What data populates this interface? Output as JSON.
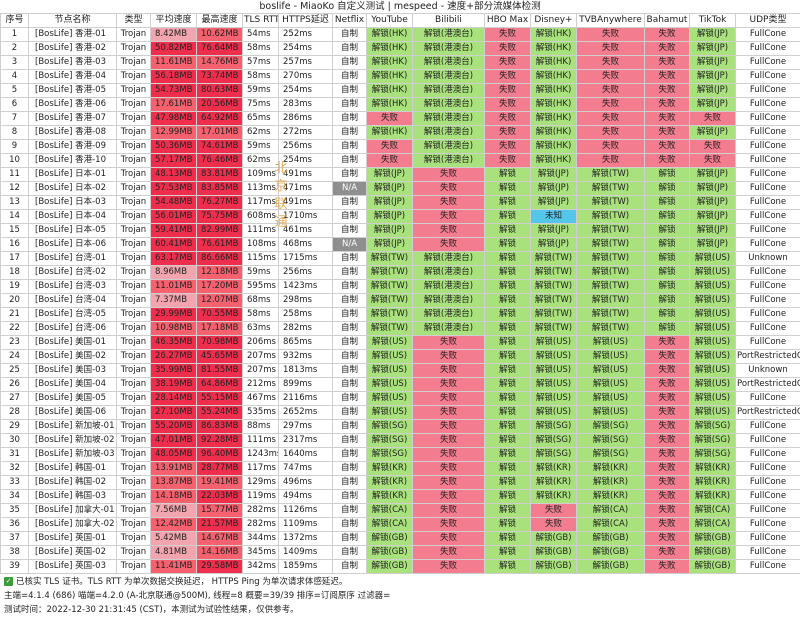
{
  "title": "boslife - MiaoKo 自定义测试 | mespeed - 速度+部分流媒体检测",
  "colors": {
    "ok": "#a9e27d",
    "fail": "#f37d8f",
    "speed_high": "#ef2e4e",
    "speed_mid": "#f5616f",
    "speed_low": "#f2a5ae",
    "na": "#8f8f8f",
    "unknown": "#53c6ea",
    "white": "#ffffff"
  },
  "headers": [
    "序号",
    "节点名称",
    "类型",
    "平均速度",
    "最高速度",
    "TLS RTT",
    "HTTPS延迟",
    "Netflix",
    "YouTube",
    "Bilibili",
    "HBO Max",
    "Disney+",
    "TVBAnywhere",
    "Bahamut",
    "TikTok",
    "UDP类型"
  ],
  "rows": [
    [
      "1",
      "[BosLife] 香港-01",
      "Trojan",
      "8.42MB",
      "10.62MB",
      "54ms",
      "252ms",
      "自制",
      "解锁(HK)",
      "解锁(港澳台)",
      "失败",
      "解锁(HK)",
      "失败",
      "失败",
      "解锁(JP)",
      "FullCone"
    ],
    [
      "2",
      "[BosLife] 香港-02",
      "Trojan",
      "50.82MB",
      "76.64MB",
      "58ms",
      "254ms",
      "自制",
      "解锁(HK)",
      "解锁(港澳台)",
      "失败",
      "解锁(HK)",
      "失败",
      "失败",
      "解锁(JP)",
      "FullCone"
    ],
    [
      "3",
      "[BosLife] 香港-03",
      "Trojan",
      "11.61MB",
      "14.76MB",
      "57ms",
      "257ms",
      "自制",
      "解锁(HK)",
      "解锁(港澳台)",
      "失败",
      "解锁(HK)",
      "失败",
      "失败",
      "解锁(JP)",
      "FullCone"
    ],
    [
      "4",
      "[BosLife] 香港-04",
      "Trojan",
      "56.18MB",
      "73.74MB",
      "58ms",
      "270ms",
      "自制",
      "解锁(HK)",
      "解锁(港澳台)",
      "失败",
      "解锁(HK)",
      "失败",
      "失败",
      "解锁(JP)",
      "FullCone"
    ],
    [
      "5",
      "[BosLife] 香港-05",
      "Trojan",
      "54.73MB",
      "80.63MB",
      "59ms",
      "254ms",
      "自制",
      "解锁(HK)",
      "解锁(港澳台)",
      "失败",
      "解锁(HK)",
      "失败",
      "失败",
      "解锁(JP)",
      "FullCone"
    ],
    [
      "6",
      "[BosLife] 香港-06",
      "Trojan",
      "17.61MB",
      "20.56MB",
      "75ms",
      "283ms",
      "自制",
      "解锁(HK)",
      "解锁(港澳台)",
      "失败",
      "解锁(HK)",
      "失败",
      "失败",
      "解锁(JP)",
      "FullCone"
    ],
    [
      "7",
      "[BosLife] 香港-07",
      "Trojan",
      "47.98MB",
      "64.92MB",
      "65ms",
      "286ms",
      "自制",
      "失败",
      "解锁(港澳台)",
      "失败",
      "解锁(HK)",
      "失败",
      "失败",
      "失败",
      "FullCone"
    ],
    [
      "8",
      "[BosLife] 香港-08",
      "Trojan",
      "12.99MB",
      "17.01MB",
      "62ms",
      "272ms",
      "自制",
      "解锁(HK)",
      "解锁(港澳台)",
      "失败",
      "解锁(HK)",
      "失败",
      "失败",
      "解锁(JP)",
      "FullCone"
    ],
    [
      "9",
      "[BosLife] 香港-09",
      "Trojan",
      "50.36MB",
      "74.61MB",
      "59ms",
      "256ms",
      "自制",
      "失败",
      "解锁(港澳台)",
      "失败",
      "解锁(HK)",
      "失败",
      "失败",
      "失败",
      "FullCone"
    ],
    [
      "10",
      "[BosLife] 香港-10",
      "Trojan",
      "57.17MB",
      "76.46MB",
      "62ms",
      "254ms",
      "自制",
      "失败",
      "解锁(港澳台)",
      "失败",
      "解锁(HK)",
      "失败",
      "失败",
      "失败",
      "FullCone"
    ],
    [
      "11",
      "[BosLife] 日本-01",
      "Trojan",
      "48.13MB",
      "83.81MB",
      "109ms",
      "491ms",
      "自制",
      "解锁(JP)",
      "失败",
      "解锁",
      "解锁(JP)",
      "解锁(TW)",
      "解锁",
      "解锁(JP)",
      "FullCone"
    ],
    [
      "12",
      "[BosLife] 日本-02",
      "Trojan",
      "57.53MB",
      "83.85MB",
      "113ms",
      "471ms",
      "N/A",
      "解锁(JP)",
      "失败",
      "解锁",
      "解锁(JP)",
      "解锁(TW)",
      "解锁",
      "解锁(JP)",
      "FullCone"
    ],
    [
      "13",
      "[BosLife] 日本-03",
      "Trojan",
      "54.48MB",
      "76.27MB",
      "117ms",
      "491ms",
      "自制",
      "解锁(JP)",
      "失败",
      "解锁",
      "解锁(JP)",
      "解锁(TW)",
      "解锁",
      "解锁(JP)",
      "FullCone"
    ],
    [
      "14",
      "[BosLife] 日本-04",
      "Trojan",
      "56.01MB",
      "75.75MB",
      "608ms",
      "1710ms",
      "自制",
      "解锁(JP)",
      "失败",
      "解锁",
      "未知",
      "解锁(TW)",
      "解锁",
      "解锁(JP)",
      "FullCone"
    ],
    [
      "15",
      "[BosLife] 日本-05",
      "Trojan",
      "59.41MB",
      "82.99MB",
      "111ms",
      "461ms",
      "自制",
      "解锁(JP)",
      "失败",
      "解锁",
      "解锁(JP)",
      "解锁(TW)",
      "解锁",
      "解锁(JP)",
      "FullCone"
    ],
    [
      "16",
      "[BosLife] 日本-06",
      "Trojan",
      "60.41MB",
      "76.61MB",
      "108ms",
      "468ms",
      "N/A",
      "解锁(JP)",
      "失败",
      "解锁",
      "解锁(JP)",
      "解锁(TW)",
      "解锁",
      "解锁(JP)",
      "FullCone"
    ],
    [
      "17",
      "[BosLife] 台湾-01",
      "Trojan",
      "63.17MB",
      "86.66MB",
      "115ms",
      "1715ms",
      "自制",
      "解锁(TW)",
      "解锁(港澳台)",
      "解锁",
      "解锁(TW)",
      "解锁(TW)",
      "解锁",
      "解锁(US)",
      "Unknown"
    ],
    [
      "18",
      "[BosLife] 台湾-02",
      "Trojan",
      "8.96MB",
      "12.18MB",
      "59ms",
      "256ms",
      "自制",
      "解锁(TW)",
      "解锁(港澳台)",
      "解锁",
      "解锁(TW)",
      "解锁(TW)",
      "解锁",
      "解锁(US)",
      "FullCone"
    ],
    [
      "19",
      "[BosLife] 台湾-03",
      "Trojan",
      "11.01MB",
      "17.20MB",
      "595ms",
      "1423ms",
      "自制",
      "解锁(TW)",
      "解锁(港澳台)",
      "解锁",
      "解锁(TW)",
      "解锁(TW)",
      "解锁",
      "解锁(US)",
      "FullCone"
    ],
    [
      "20",
      "[BosLife] 台湾-04",
      "Trojan",
      "7.37MB",
      "12.07MB",
      "68ms",
      "298ms",
      "自制",
      "解锁(TW)",
      "解锁(港澳台)",
      "解锁",
      "解锁(TW)",
      "解锁(TW)",
      "解锁",
      "解锁(US)",
      "FullCone"
    ],
    [
      "21",
      "[BosLife] 台湾-05",
      "Trojan",
      "29.99MB",
      "70.55MB",
      "58ms",
      "258ms",
      "自制",
      "解锁(TW)",
      "解锁(港澳台)",
      "解锁",
      "解锁(TW)",
      "解锁(TW)",
      "解锁",
      "解锁(US)",
      "FullCone"
    ],
    [
      "22",
      "[BosLife] 台湾-06",
      "Trojan",
      "10.98MB",
      "17.18MB",
      "63ms",
      "282ms",
      "自制",
      "解锁(TW)",
      "解锁(港澳台)",
      "解锁",
      "解锁(TW)",
      "解锁(TW)",
      "解锁",
      "解锁(US)",
      "FullCone"
    ],
    [
      "23",
      "[BosLife] 美国-01",
      "Trojan",
      "46.35MB",
      "70.98MB",
      "206ms",
      "865ms",
      "自制",
      "解锁(US)",
      "失败",
      "解锁",
      "解锁(US)",
      "解锁(US)",
      "失败",
      "解锁(US)",
      "FullCone"
    ],
    [
      "24",
      "[BosLife] 美国-02",
      "Trojan",
      "26.27MB",
      "45.65MB",
      "207ms",
      "932ms",
      "自制",
      "解锁(US)",
      "失败",
      "解锁",
      "解锁(US)",
      "解锁(US)",
      "失败",
      "解锁(US)",
      "PortRestrictedCone"
    ],
    [
      "25",
      "[BosLife] 美国-03",
      "Trojan",
      "35.99MB",
      "81.55MB",
      "207ms",
      "1813ms",
      "自制",
      "解锁(US)",
      "失败",
      "解锁",
      "解锁(US)",
      "解锁(US)",
      "失败",
      "解锁(US)",
      "Unknown"
    ],
    [
      "26",
      "[BosLife] 美国-04",
      "Trojan",
      "38.19MB",
      "64.86MB",
      "212ms",
      "899ms",
      "自制",
      "解锁(US)",
      "失败",
      "解锁",
      "解锁(US)",
      "解锁(US)",
      "失败",
      "解锁(US)",
      "PortRestrictedCone"
    ],
    [
      "27",
      "[BosLife] 美国-05",
      "Trojan",
      "28.14MB",
      "55.15MB",
      "467ms",
      "2116ms",
      "自制",
      "解锁(US)",
      "失败",
      "解锁",
      "解锁(US)",
      "解锁(US)",
      "失败",
      "解锁(US)",
      "FullCone"
    ],
    [
      "28",
      "[BosLife] 美国-06",
      "Trojan",
      "27.10MB",
      "55.24MB",
      "535ms",
      "2652ms",
      "自制",
      "解锁(US)",
      "失败",
      "解锁",
      "解锁(US)",
      "解锁(US)",
      "失败",
      "解锁(US)",
      "PortRestrictedCone"
    ],
    [
      "29",
      "[BosLife] 新加坡-01",
      "Trojan",
      "55.20MB",
      "86.83MB",
      "88ms",
      "297ms",
      "自制",
      "解锁(SG)",
      "失败",
      "解锁",
      "解锁(SG)",
      "解锁(SG)",
      "失败",
      "解锁(SG)",
      "FullCone"
    ],
    [
      "30",
      "[BosLife] 新加坡-02",
      "Trojan",
      "47.01MB",
      "92.28MB",
      "111ms",
      "2317ms",
      "自制",
      "解锁(SG)",
      "失败",
      "解锁",
      "解锁(SG)",
      "解锁(SG)",
      "失败",
      "解锁(SG)",
      "FullCone"
    ],
    [
      "31",
      "[BosLife] 新加坡-03",
      "Trojan",
      "48.05MB",
      "96.40MB",
      "1243ms",
      "1640ms",
      "自制",
      "解锁(SG)",
      "失败",
      "解锁",
      "解锁(SG)",
      "解锁(SG)",
      "失败",
      "解锁(SG)",
      "FullCone"
    ],
    [
      "32",
      "[BosLife] 韩国-01",
      "Trojan",
      "13.91MB",
      "28.77MB",
      "117ms",
      "747ms",
      "自制",
      "解锁(KR)",
      "失败",
      "解锁",
      "解锁(KR)",
      "解锁(KR)",
      "失败",
      "解锁(KR)",
      "FullCone"
    ],
    [
      "33",
      "[BosLife] 韩国-02",
      "Trojan",
      "13.87MB",
      "19.41MB",
      "129ms",
      "496ms",
      "自制",
      "解锁(KR)",
      "失败",
      "解锁",
      "解锁(KR)",
      "解锁(KR)",
      "失败",
      "解锁(KR)",
      "FullCone"
    ],
    [
      "34",
      "[BosLife] 韩国-03",
      "Trojan",
      "14.18MB",
      "22.03MB",
      "119ms",
      "494ms",
      "自制",
      "解锁(KR)",
      "失败",
      "解锁",
      "解锁(KR)",
      "解锁(KR)",
      "失败",
      "解锁(KR)",
      "FullCone"
    ],
    [
      "35",
      "[BosLife] 加拿大-01",
      "Trojan",
      "7.56MB",
      "15.77MB",
      "282ms",
      "1126ms",
      "自制",
      "解锁(CA)",
      "失败",
      "解锁",
      "失败",
      "解锁(CA)",
      "失败",
      "解锁(CA)",
      "FullCone"
    ],
    [
      "36",
      "[BosLife] 加拿大-02",
      "Trojan",
      "12.42MB",
      "21.57MB",
      "282ms",
      "1109ms",
      "自制",
      "解锁(CA)",
      "失败",
      "解锁",
      "失败",
      "解锁(CA)",
      "失败",
      "解锁(CA)",
      "FullCone"
    ],
    [
      "37",
      "[BosLife] 英国-01",
      "Trojan",
      "5.42MB",
      "14.67MB",
      "344ms",
      "1372ms",
      "自制",
      "解锁(GB)",
      "失败",
      "解锁",
      "解锁(GB)",
      "解锁(GB)",
      "失败",
      "解锁(GB)",
      "FullCone"
    ],
    [
      "38",
      "[BosLife] 英国-02",
      "Trojan",
      "4.81MB",
      "14.16MB",
      "345ms",
      "1409ms",
      "自制",
      "解锁(GB)",
      "失败",
      "解锁",
      "解锁(GB)",
      "解锁(GB)",
      "失败",
      "解锁(GB)",
      "FullCone"
    ],
    [
      "39",
      "[BosLife] 英国-03",
      "Trojan",
      "11.41MB",
      "29.58MB",
      "342ms",
      "1859ms",
      "自制",
      "解锁(GB)",
      "失败",
      "解锁",
      "解锁(GB)",
      "解锁(GB)",
      "失败",
      "解锁(GB)",
      "FullCone"
    ]
  ],
  "watermark": "北京联通",
  "footer": {
    "line1": "已核实 TLS 证书。TLS RTT 为单次数据交换延迟， HTTPS Ping 为单次请求体感延迟。",
    "line2": "主端=4.1.4 (686) 喵端=4.2.0 (A-北京联通@500M), 线程=8 概要=39/39 排序=订阅原序 过滤器=",
    "line3": "测试时间：2022-12-30 21:31:45 (CST)，本测试为试验性结果，仅供参考。"
  }
}
